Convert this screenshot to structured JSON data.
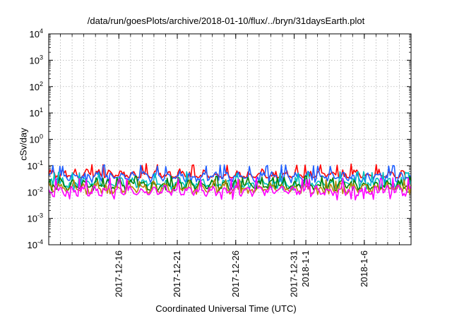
{
  "chart_data": {
    "type": "line",
    "title": "/data/run/goesPlots/archive/2018-01-10/flux/../bryn/31daysEarth.plot",
    "xlabel": "Coordinated Universal Time (UTC)",
    "ylabel": "cSv/day",
    "yscale": "log",
    "ylim": [
      0.0001,
      10000
    ],
    "y_ticks": [
      {
        "value": 0.0001,
        "base": "10",
        "exp": "-4"
      },
      {
        "value": 0.001,
        "base": "10",
        "exp": "-3"
      },
      {
        "value": 0.01,
        "base": "10",
        "exp": "-2"
      },
      {
        "value": 0.1,
        "base": "10",
        "exp": "-1"
      },
      {
        "value": 1,
        "base": "10",
        "exp": "0"
      },
      {
        "value": 10,
        "base": "10",
        "exp": "1"
      },
      {
        "value": 100,
        "base": "10",
        "exp": "2"
      },
      {
        "value": 1000,
        "base": "10",
        "exp": "3"
      },
      {
        "value": 10000,
        "base": "10",
        "exp": "4"
      }
    ],
    "xlim": [
      "2017-12-10",
      "2018-01-10"
    ],
    "x_ticks": [
      {
        "date": "2017-12-16",
        "label": "2017-12-16"
      },
      {
        "date": "2017-12-21",
        "label": "2017-12-21"
      },
      {
        "date": "2017-12-26",
        "label": "2017-12-26"
      },
      {
        "date": "2017-12-31",
        "label": "2017-12-31"
      },
      {
        "date": "2018-01-01",
        "label": "2018-1-1"
      },
      {
        "date": "2018-01-06",
        "label": "2018-1-6"
      }
    ],
    "grid": true,
    "legend": "none",
    "series": [
      {
        "color": "#ff0000",
        "typical": 0.045,
        "low": 0.035,
        "high": 0.12
      },
      {
        "color": "#1f5fff",
        "typical": 0.038,
        "low": 0.022,
        "high": 0.11
      },
      {
        "color": "#00bfbf",
        "typical": 0.022,
        "low": 0.012,
        "high": 0.06
      },
      {
        "color": "#008000",
        "typical": 0.018,
        "low": 0.011,
        "high": 0.04
      },
      {
        "color": "#b8860b",
        "typical": 0.014,
        "low": 0.008,
        "high": 0.03
      },
      {
        "color": "#ff00ff",
        "typical": 0.011,
        "low": 0.005,
        "high": 0.035
      }
    ]
  }
}
